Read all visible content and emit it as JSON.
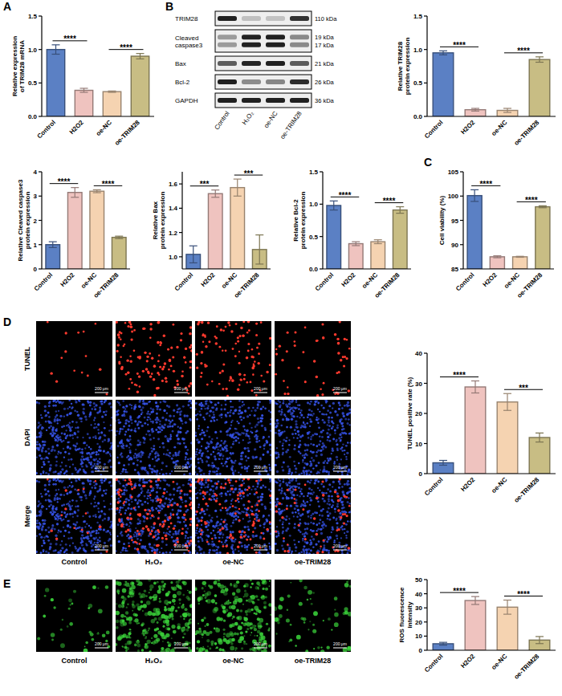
{
  "panel_labels": [
    "A",
    "B",
    "C",
    "D",
    "E"
  ],
  "chart_data": [
    {
      "type": "bar",
      "y_label": "Relative expression of TRIM28 mRNA",
      "categories": [
        "Control",
        "H2O2",
        "oe-NC",
        "oe-TRIM28"
      ],
      "values": [
        1.0,
        0.39,
        0.37,
        0.9
      ],
      "errors": [
        0.07,
        0.03,
        0.01,
        0.04
      ],
      "colors": [
        "#5b80c4",
        "#efc3bf",
        "#f5d3b1",
        "#c8bd84"
      ],
      "ylim": [
        0,
        1.5
      ],
      "yticks": [
        {
          "value": 0,
          "label": "0.0"
        },
        {
          "value": 0.5,
          "label": "0.5"
        },
        {
          "value": 1,
          "label": "1.0"
        },
        {
          "value": 1.5,
          "label": "1.5"
        }
      ],
      "grid": false,
      "annotations": [
        {
          "label": "****",
          "pair": [
            "Control",
            "H2O2"
          ]
        },
        {
          "label": "****",
          "pair": [
            "oe-NC",
            "oe-TRIM28"
          ]
        }
      ]
    },
    {
      "type": "bar",
      "y_label": "Relative TRIM28 protein expression",
      "categories": [
        "Control",
        "H2O2",
        "oe-NC",
        "oe-TRIM28"
      ],
      "values": [
        0.95,
        0.1,
        0.09,
        0.85
      ],
      "errors": [
        0.03,
        0.02,
        0.03,
        0.04
      ],
      "colors": [
        "#5b80c4",
        "#efc3bf",
        "#f5d3b1",
        "#c8bd84"
      ],
      "ylim": [
        0,
        1.5
      ],
      "yticks": [
        {
          "value": 0,
          "label": "0.0"
        },
        {
          "value": 0.5,
          "label": "0.5"
        },
        {
          "value": 1,
          "label": "1.0"
        },
        {
          "value": 1.5,
          "label": "1.5"
        }
      ],
      "grid": false,
      "annotations": [
        {
          "label": "****",
          "pair": [
            "Control",
            "H2O2"
          ]
        },
        {
          "label": "****",
          "pair": [
            "oe-NC",
            "oe-TRIM28"
          ]
        }
      ]
    },
    {
      "type": "bar",
      "y_label": "Relative Cleaved caspase3 protein expression",
      "categories": [
        "Control",
        "H2O2",
        "oe-NC",
        "oe-TRIM28"
      ],
      "values": [
        1.0,
        3.15,
        3.2,
        1.3
      ],
      "errors": [
        0.12,
        0.2,
        0.06,
        0.05
      ],
      "colors": [
        "#5b80c4",
        "#efc3bf",
        "#f5d3b1",
        "#c8bd84"
      ],
      "ylim": [
        0,
        4
      ],
      "yticks": [
        0,
        1,
        2,
        3,
        4
      ],
      "grid": false,
      "annotations": [
        {
          "label": "****",
          "pair": [
            "Control",
            "H2O2"
          ]
        },
        {
          "label": "****",
          "pair": [
            "oe-NC",
            "oe-TRIM28"
          ]
        }
      ]
    },
    {
      "type": "bar",
      "y_label": "Relative Bax protein expression",
      "categories": [
        "Control",
        "H2O2",
        "oe-NC",
        "oe-TRIM28"
      ],
      "values": [
        1.02,
        1.52,
        1.57,
        1.06
      ],
      "errors": [
        0.07,
        0.03,
        0.07,
        0.12
      ],
      "colors": [
        "#5b80c4",
        "#efc3bf",
        "#f5d3b1",
        "#c8bd84"
      ],
      "ylim": [
        0.9,
        1.7
      ],
      "yticks": [
        {
          "value": 1.0,
          "label": "1.0"
        },
        {
          "value": 1.2,
          "label": "1.2"
        },
        {
          "value": 1.4,
          "label": "1.4"
        },
        {
          "value": 1.6,
          "label": "1.6"
        }
      ],
      "grid": false,
      "annotations": [
        {
          "label": "***",
          "pair": [
            "Control",
            "H2O2"
          ]
        },
        {
          "label": "***",
          "pair": [
            "oe-NC",
            "oe-TRIM28"
          ]
        }
      ]
    },
    {
      "type": "bar",
      "y_label": "Relative Bcl-2 protein expression",
      "categories": [
        "Control",
        "H2O2",
        "oe-NC",
        "oe-TRIM28"
      ],
      "values": [
        0.98,
        0.39,
        0.42,
        0.91
      ],
      "errors": [
        0.07,
        0.03,
        0.03,
        0.05
      ],
      "colors": [
        "#5b80c4",
        "#efc3bf",
        "#f5d3b1",
        "#c8bd84"
      ],
      "ylim": [
        0,
        1.5
      ],
      "yticks": [
        {
          "value": 0,
          "label": "0.0"
        },
        {
          "value": 0.5,
          "label": "0.5"
        },
        {
          "value": 1,
          "label": "1.0"
        },
        {
          "value": 1.5,
          "label": "1.5"
        }
      ],
      "grid": false,
      "annotations": [
        {
          "label": "****",
          "pair": [
            "Control",
            "H2O2"
          ]
        },
        {
          "label": "****",
          "pair": [
            "oe-NC",
            "oe-TRIM28"
          ]
        }
      ]
    },
    {
      "type": "bar",
      "y_label": "Cell viability (%)",
      "categories": [
        "Control",
        "H2O2",
        "oe-NC",
        "oe-TRIM28"
      ],
      "values": [
        100.1,
        87.5,
        87.5,
        97.8
      ],
      "errors": [
        1.2,
        0.2,
        0.1,
        0.2
      ],
      "colors": [
        "#5b80c4",
        "#efc3bf",
        "#f5d3b1",
        "#c8bd84"
      ],
      "ylim": [
        85,
        105
      ],
      "yticks": [
        85,
        90,
        95,
        100,
        105
      ],
      "grid": false,
      "annotations": [
        {
          "label": "****",
          "pair": [
            "Control",
            "H2O2"
          ]
        },
        {
          "label": "****",
          "pair": [
            "oe-NC",
            "oe-TRIM28"
          ]
        }
      ]
    },
    {
      "type": "bar",
      "y_label": "TUNEL positive rate (%)",
      "categories": [
        "Control",
        "H2O2",
        "oe-NC",
        "oe-TRIM28"
      ],
      "values": [
        3.6,
        28.8,
        23.8,
        12.0
      ],
      "errors": [
        0.8,
        2.0,
        2.8,
        1.5
      ],
      "colors": [
        "#5b80c4",
        "#efc3bf",
        "#f5d3b1",
        "#c8bd84"
      ],
      "ylim": [
        0,
        40
      ],
      "yticks": [
        0,
        10,
        20,
        30,
        40
      ],
      "grid": false,
      "annotations": [
        {
          "label": "****",
          "pair": [
            "Control",
            "H2O2"
          ]
        },
        {
          "label": "***",
          "pair": [
            "oe-NC",
            "oe-TRIM28"
          ]
        }
      ]
    },
    {
      "type": "bar",
      "y_label": "ROS fluorescence intensity",
      "categories": [
        "Control",
        "H2O2",
        "oe-NC",
        "oe-TRIM28"
      ],
      "values": [
        4.6,
        35.2,
        30.5,
        7.2
      ],
      "errors": [
        1.0,
        2.8,
        5.0,
        2.5
      ],
      "colors": [
        "#5b80c4",
        "#efc3bf",
        "#f5d3b1",
        "#c8bd84"
      ],
      "ylim": [
        0,
        50
      ],
      "yticks": [
        0,
        10,
        20,
        30,
        40,
        50
      ],
      "grid": false,
      "annotations": [
        {
          "label": "****",
          "pair": [
            "Control",
            "H2O2"
          ]
        },
        {
          "label": "****",
          "pair": [
            "oe-NC",
            "oe-TRIM28"
          ]
        }
      ]
    }
  ],
  "blot": {
    "rows": [
      {
        "label": "TRIM28",
        "kda": [
          "110 kDa"
        ]
      },
      {
        "label": "Cleaved caspase3",
        "kda": [
          "19 kDa",
          "17 kDa"
        ]
      },
      {
        "label": "Bax",
        "kda": [
          "21 kDa"
        ]
      },
      {
        "label": "Bcl-2",
        "kda": [
          "26 kDa"
        ]
      },
      {
        "label": "GAPDH",
        "kda": [
          "36 kDa"
        ]
      }
    ],
    "lanes": [
      "Control",
      "H₂O₂",
      "oe-NC",
      "oe-TRIM28"
    ]
  },
  "micrographs": [
    {
      "rows": [
        "TUNEL",
        "DAPI",
        "Merge"
      ],
      "columns": [
        "Control",
        "H₂O₂",
        "oe-NC",
        "oe-TRIM28"
      ],
      "scale_bar": "200 μm"
    },
    {
      "columns": [
        "Control",
        "H₂O₂",
        "oe-NC",
        "oe-TRIM28"
      ],
      "scale_bar": "200 μm"
    }
  ]
}
